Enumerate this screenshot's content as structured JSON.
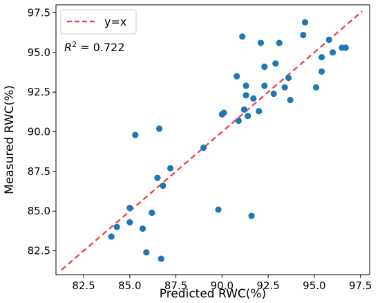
{
  "chart_data": {
    "type": "scatter",
    "xlabel": "Predicted RWC(%)",
    "ylabel": "Measured RWC(%)",
    "xlim": [
      81.0,
      98.0
    ],
    "ylim": [
      81.0,
      98.0
    ],
    "xticks": [
      82.5,
      85.0,
      87.5,
      90.0,
      92.5,
      95.0,
      97.5
    ],
    "xtick_labels": [
      "82.5",
      "85.0",
      "87.5",
      "90.0",
      "92.5",
      "95.0",
      "97.5"
    ],
    "yticks": [
      82.5,
      85.0,
      87.5,
      90.0,
      92.5,
      95.0,
      97.5
    ],
    "ytick_labels": [
      "82.5",
      "85.0",
      "87.5",
      "90.0",
      "92.5",
      "95.0",
      "97.5"
    ],
    "grid": false,
    "legend": {
      "position": "top-left",
      "entries": [
        "y=x"
      ]
    },
    "reference_line": {
      "label": "y=x",
      "from": [
        81.3,
        81.3
      ],
      "to": [
        97.6,
        97.6
      ],
      "style": "dashed",
      "color": "#ee4b4b"
    },
    "annotation": {
      "prefix": "R",
      "superscript": "2",
      "text": " = 0.722"
    },
    "marker_color": "#1f77b4",
    "series": [
      {
        "points": [
          [
            84.0,
            83.4
          ],
          [
            84.3,
            84.0
          ],
          [
            85.0,
            85.2
          ],
          [
            85.0,
            84.3
          ],
          [
            85.7,
            83.9
          ],
          [
            85.9,
            82.4
          ],
          [
            86.2,
            84.9
          ],
          [
            86.5,
            87.1
          ],
          [
            86.6,
            90.2
          ],
          [
            86.8,
            86.6
          ],
          [
            87.2,
            87.7
          ],
          [
            86.7,
            82.0
          ],
          [
            85.3,
            89.8
          ],
          [
            89.0,
            89.0
          ],
          [
            89.8,
            85.1
          ],
          [
            90.0,
            91.1
          ],
          [
            90.1,
            91.2
          ],
          [
            90.8,
            93.5
          ],
          [
            90.9,
            90.7
          ],
          [
            91.1,
            96.0
          ],
          [
            91.2,
            91.4
          ],
          [
            91.3,
            92.3
          ],
          [
            91.3,
            92.9
          ],
          [
            91.4,
            91.0
          ],
          [
            91.6,
            84.7
          ],
          [
            91.7,
            92.1
          ],
          [
            92.0,
            91.3
          ],
          [
            92.1,
            95.6
          ],
          [
            92.3,
            94.1
          ],
          [
            92.3,
            92.9
          ],
          [
            92.8,
            92.4
          ],
          [
            92.9,
            94.3
          ],
          [
            93.1,
            95.6
          ],
          [
            93.4,
            92.8
          ],
          [
            93.6,
            93.4
          ],
          [
            93.7,
            92.0
          ],
          [
            94.4,
            96.1
          ],
          [
            94.5,
            96.9
          ],
          [
            95.1,
            92.8
          ],
          [
            95.4,
            94.7
          ],
          [
            95.4,
            93.8
          ],
          [
            95.8,
            95.8
          ],
          [
            96.0,
            95.0
          ],
          [
            96.5,
            95.3
          ],
          [
            96.7,
            95.3
          ]
        ]
      }
    ]
  }
}
